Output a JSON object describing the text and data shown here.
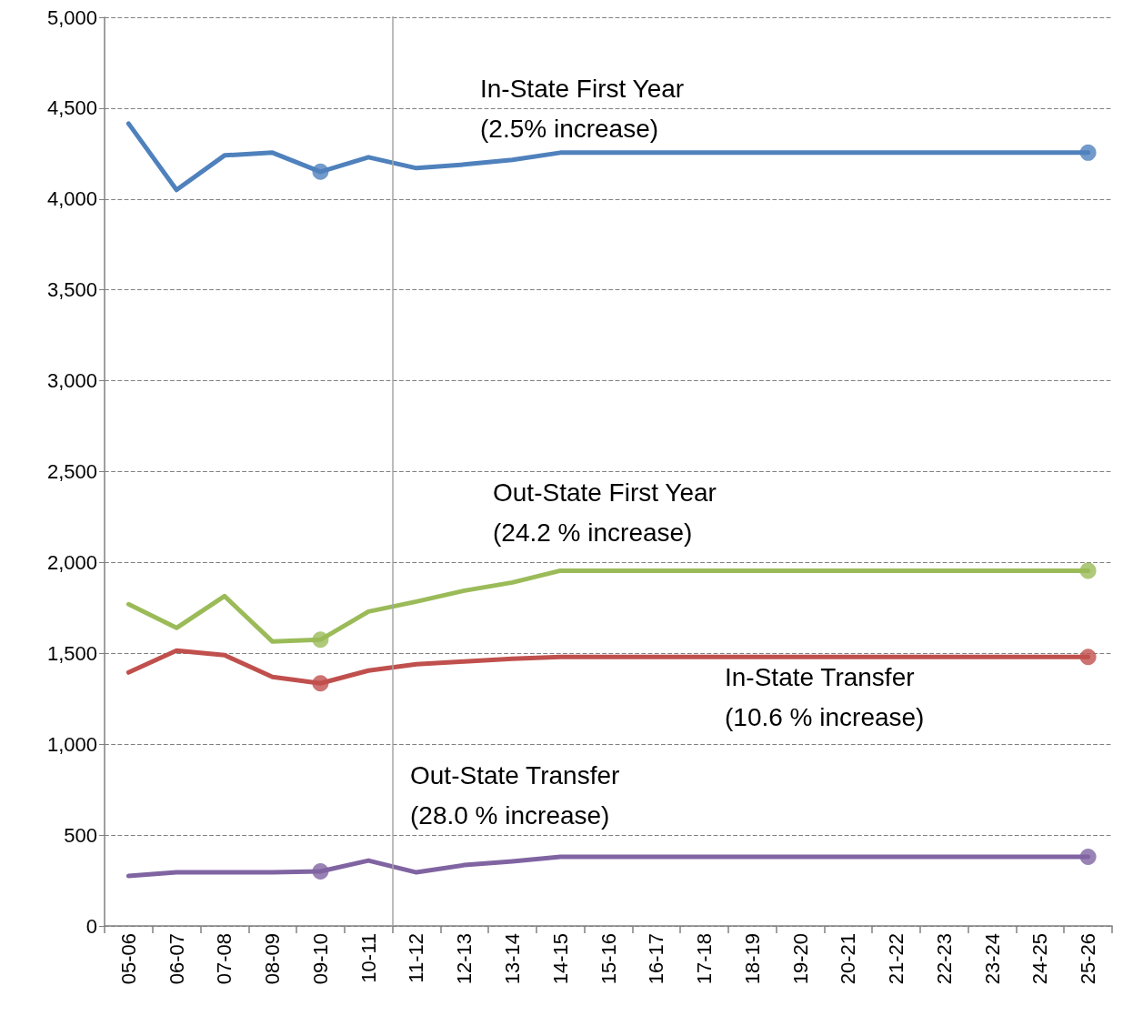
{
  "chart_data": {
    "type": "line",
    "categories": [
      "05-06",
      "06-07",
      "07-08",
      "08-09",
      "09-10",
      "10-11",
      "11-12",
      "12-13",
      "13-14",
      "14-15",
      "15-16",
      "16-17",
      "17-18",
      "18-19",
      "19-20",
      "20-21",
      "21-22",
      "22-23",
      "23-24",
      "24-25",
      "25-26"
    ],
    "series": [
      {
        "name": "In-State First Year",
        "color": "#4f81bd",
        "values": [
          4415,
          4050,
          4240,
          4255,
          4150,
          4230,
          4170,
          4190,
          4215,
          4255,
          4255,
          4255,
          4255,
          4255,
          4255,
          4255,
          4255,
          4255,
          4255,
          4255,
          4255
        ]
      },
      {
        "name": "Out-State First Year",
        "color": "#9bbb59",
        "values": [
          1770,
          1640,
          1815,
          1565,
          1575,
          1730,
          1785,
          1845,
          1890,
          1955,
          1955,
          1955,
          1955,
          1955,
          1955,
          1955,
          1955,
          1955,
          1955,
          1955,
          1955
        ]
      },
      {
        "name": "In-State Transfer",
        "color": "#c0504d",
        "values": [
          1395,
          1515,
          1490,
          1370,
          1335,
          1405,
          1440,
          1455,
          1470,
          1480,
          1480,
          1480,
          1480,
          1480,
          1480,
          1480,
          1480,
          1480,
          1480,
          1480,
          1480
        ]
      },
      {
        "name": "Out-State Transfer",
        "color": "#8064a2",
        "values": [
          275,
          295,
          295,
          295,
          300,
          360,
          295,
          335,
          355,
          380,
          380,
          380,
          380,
          380,
          380,
          380,
          380,
          380,
          380,
          380,
          380
        ]
      },
      {
        "type": "scatter",
        "color": "#4f81bd",
        "x": [
          "09-10",
          "25-26"
        ],
        "values": [
          4150,
          4255
        ]
      },
      {
        "type": "scatter",
        "color": "#9bbb59",
        "x": [
          "09-10",
          "25-26"
        ],
        "values": [
          1575,
          1955
        ]
      },
      {
        "type": "scatter",
        "color": "#c0504d",
        "x": [
          "09-10",
          "25-26"
        ],
        "values": [
          1335,
          1480
        ]
      },
      {
        "type": "scatter",
        "color": "#8064a2",
        "x": [
          "09-10",
          "25-26"
        ],
        "values": [
          300,
          380
        ]
      }
    ],
    "annotations": [
      "(2.5% increase)",
      "(24.2 % increase)",
      "(10.6 % increase)",
      "(28.0 % increase)"
    ],
    "ref_lines": [
      {
        "axis": "x",
        "value": "10-11",
        "color": "#a6a6a6"
      }
    ],
    "ylim": [
      0,
      5000
    ],
    "yticks": [
      0,
      500,
      {
        "value": 1000,
        "label": "1,000"
      },
      {
        "value": 1500,
        "label": "1,500"
      },
      {
        "value": 2000,
        "label": "2,000"
      },
      {
        "value": 2500,
        "label": "2,500"
      },
      {
        "value": 3000,
        "label": "3,000"
      },
      {
        "value": 3500,
        "label": "3,500"
      },
      {
        "value": 4000,
        "label": "4,000"
      },
      {
        "value": 4500,
        "label": "4,500"
      },
      {
        "value": 5000,
        "label": "5,000"
      }
    ],
    "grid": "y",
    "legend": false,
    "line_style": "solid"
  }
}
